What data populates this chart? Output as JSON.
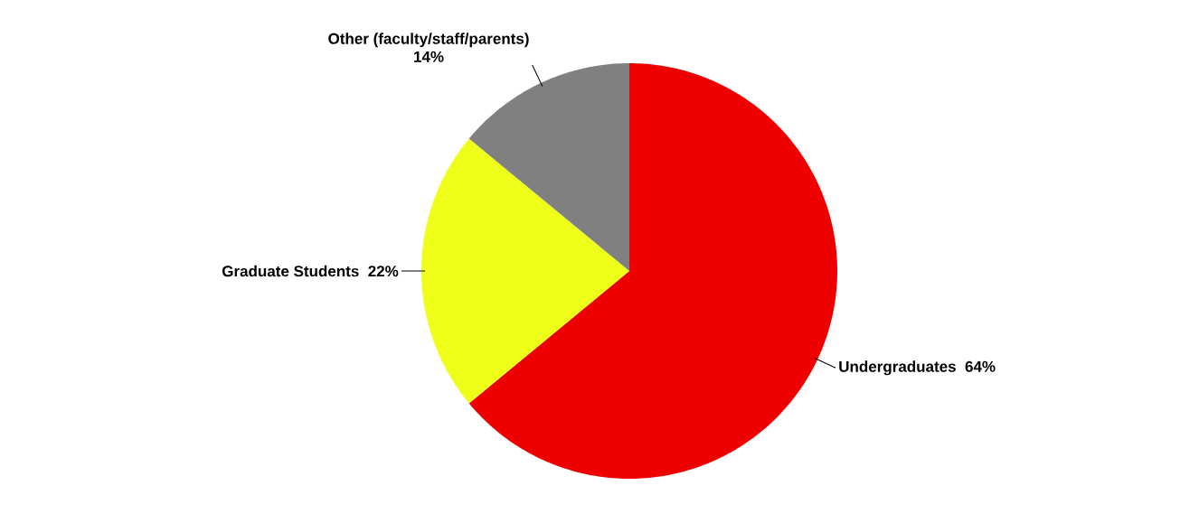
{
  "chart_data": {
    "type": "pie",
    "categories": [
      "Undergraduates",
      "Graduate Students",
      "Other (faculty/staff/parents)"
    ],
    "values": [
      64,
      22,
      14
    ],
    "value_labels": [
      "64%",
      "22%",
      "14%"
    ],
    "colors": [
      "#ee0000",
      "#eeff1a",
      "#808080"
    ]
  }
}
